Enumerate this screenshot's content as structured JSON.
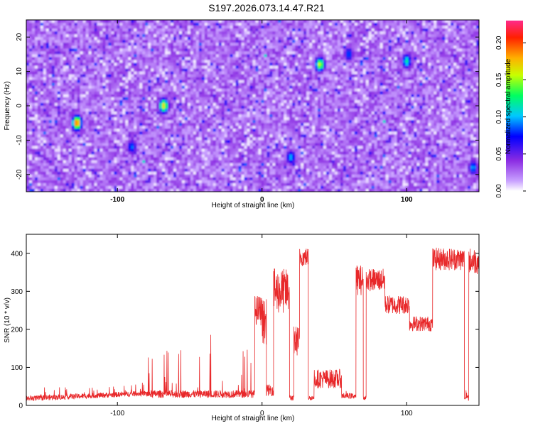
{
  "title": "S197.2026.073.14.47.R21",
  "colors": {
    "snr_line": "#e8282a",
    "axis": "#000000",
    "background": "#ffffff"
  },
  "chart_data": [
    {
      "type": "heatmap",
      "xlabel": "Height of straight line (km)",
      "ylabel": "Frequency (Hz)",
      "xlim": [
        -163,
        150
      ],
      "ylim": [
        -25,
        25
      ],
      "x_ticks": [
        "-100",
        "0",
        "100"
      ],
      "x_tick_values": [
        -100,
        0,
        100
      ],
      "y_ticks": [
        "-20",
        "-10",
        "0",
        "10",
        "20"
      ],
      "y_tick_values": [
        -20,
        -10,
        0,
        10,
        20
      ],
      "colorbar": {
        "label": "Normalized spectral amplitude",
        "range": [
          0,
          0.23
        ],
        "ticks": [
          "0.00",
          "0.05",
          "0.10",
          "0.15",
          "0.20"
        ],
        "tick_values": [
          0,
          0.05,
          0.1,
          0.15,
          0.2
        ],
        "colormap": [
          "#ffffff",
          "#8a2be2",
          "#0000ff",
          "#00ffff",
          "#00ff00",
          "#ffff00",
          "#ff8000",
          "#ff0000",
          "#ff1493"
        ]
      },
      "hotspots": [
        {
          "x": -128,
          "y": -5,
          "amp": 0.2
        },
        {
          "x": -68,
          "y": 0,
          "amp": 0.17
        },
        {
          "x": 40,
          "y": 12,
          "amp": 0.16
        },
        {
          "x": 100,
          "y": 13,
          "amp": 0.12
        },
        {
          "x": 20,
          "y": -15,
          "amp": 0.1
        },
        {
          "x": 146,
          "y": -18,
          "amp": 0.1
        },
        {
          "x": -90,
          "y": -12,
          "amp": 0.09
        },
        {
          "x": 60,
          "y": 15,
          "amp": 0.09
        }
      ]
    },
    {
      "type": "line",
      "xlabel": "Height of straight line (km)",
      "ylabel": "SNR (10 * v/v)",
      "xlim": [
        -163,
        150
      ],
      "ylim": [
        0,
        450
      ],
      "x_ticks": [
        "-100",
        "0",
        "100"
      ],
      "x_tick_values": [
        -100,
        0,
        100
      ],
      "y_ticks": [
        "0",
        "100",
        "200",
        "300",
        "400"
      ],
      "y_tick_values": [
        0,
        100,
        200,
        300,
        400
      ],
      "segments": [
        {
          "x0": -163,
          "x1": -80,
          "base": 18,
          "slope_end": 32,
          "noise": 14,
          "kind": "noise"
        },
        {
          "x0": -80,
          "x1": -5,
          "base": 20,
          "peak": 170,
          "kind": "spiky"
        },
        {
          "x0": -5,
          "x1": 0,
          "base": 250,
          "noise": 40,
          "kind": "plateau"
        },
        {
          "x0": 0,
          "x1": 3,
          "base": 220,
          "noise": 60,
          "kind": "plateau"
        },
        {
          "x0": 3,
          "x1": 8,
          "base": 40,
          "noise": 30,
          "kind": "noise"
        },
        {
          "x0": 8,
          "x1": 19,
          "base": 300,
          "noise": 60,
          "kind": "plateau"
        },
        {
          "x0": 19,
          "x1": 22,
          "base": 20,
          "noise": 15,
          "kind": "noise"
        },
        {
          "x0": 22,
          "x1": 26,
          "base": 170,
          "noise": 40,
          "kind": "plateau"
        },
        {
          "x0": 26,
          "x1": 32,
          "base": 390,
          "noise": 25,
          "kind": "plateau"
        },
        {
          "x0": 32,
          "x1": 36,
          "base": 20,
          "noise": 12,
          "kind": "noise"
        },
        {
          "x0": 36,
          "x1": 55,
          "base": 70,
          "noise": 25,
          "kind": "plateau"
        },
        {
          "x0": 55,
          "x1": 65,
          "base": 25,
          "noise": 15,
          "kind": "noise"
        },
        {
          "x0": 65,
          "x1": 70,
          "base": 330,
          "noise": 40,
          "kind": "plateau"
        },
        {
          "x0": 70,
          "x1": 72,
          "base": 20,
          "noise": 10,
          "kind": "noise"
        },
        {
          "x0": 72,
          "x1": 85,
          "base": 330,
          "noise": 30,
          "kind": "plateau"
        },
        {
          "x0": 85,
          "x1": 102,
          "base": 265,
          "noise": 25,
          "kind": "plateau"
        },
        {
          "x0": 102,
          "x1": 118,
          "base": 215,
          "noise": 20,
          "kind": "plateau"
        },
        {
          "x0": 118,
          "x1": 140,
          "base": 385,
          "noise": 30,
          "kind": "plateau"
        },
        {
          "x0": 140,
          "x1": 143,
          "base": 20,
          "noise": 15,
          "kind": "noise"
        },
        {
          "x0": 143,
          "x1": 150,
          "base": 380,
          "noise": 35,
          "kind": "plateau"
        }
      ]
    }
  ]
}
